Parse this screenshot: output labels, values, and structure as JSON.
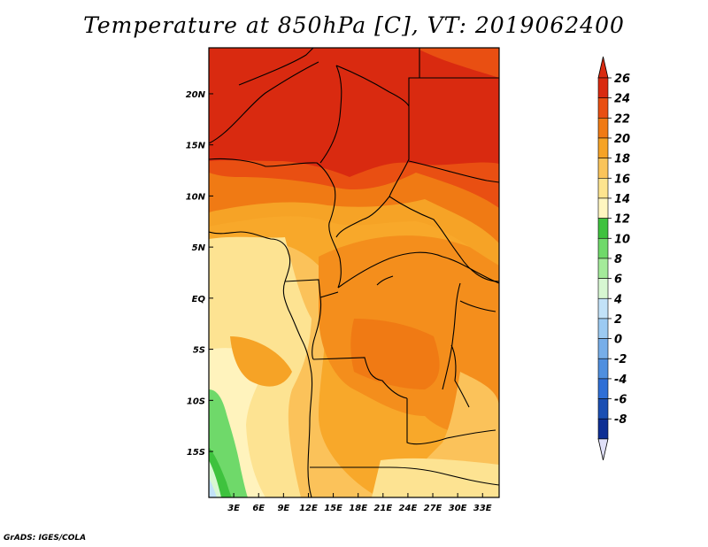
{
  "title": "Temperature at 850hPa [C], VT: 2019062400",
  "credit": "GrADS: IGES/COLA",
  "map": {
    "lon_labels": [
      "3E",
      "6E",
      "9E",
      "12E",
      "15E",
      "18E",
      "21E",
      "24E",
      "27E",
      "30E",
      "33E"
    ],
    "lat_labels": [
      "20N",
      "15N",
      "10N",
      "5N",
      "EQ",
      "5S",
      "10S",
      "15S"
    ],
    "lon_range": [
      0,
      35
    ],
    "lat_range": [
      -19.5,
      24.5
    ],
    "lon_ticks": [
      3,
      6,
      9,
      12,
      15,
      18,
      21,
      24,
      27,
      30,
      33
    ],
    "lat_ticks": [
      20,
      15,
      10,
      5,
      0,
      -5,
      -10,
      -15
    ]
  },
  "colorbar": {
    "labels": [
      "26",
      "24",
      "22",
      "20",
      "18",
      "16",
      "14",
      "12",
      "10",
      "8",
      "6",
      "4",
      "2",
      "0",
      "-2",
      "-4",
      "-6",
      "-8"
    ],
    "colors": [
      "#d92a10",
      "#e94f12",
      "#f07a14",
      "#f6a326",
      "#fac45a",
      "#fde48f",
      "#fff6c0",
      "#3ec23e",
      "#6fd96a",
      "#a4eb9a",
      "#d7f7d2",
      "#c2e2f8",
      "#9ccaf2",
      "#77aee9",
      "#4f8fdf",
      "#2f6fd6",
      "#1b4fb3",
      "#0e2f94",
      "#0a1775"
    ],
    "over_color": "#d92a10",
    "under_color": "#e0e0f8"
  }
}
